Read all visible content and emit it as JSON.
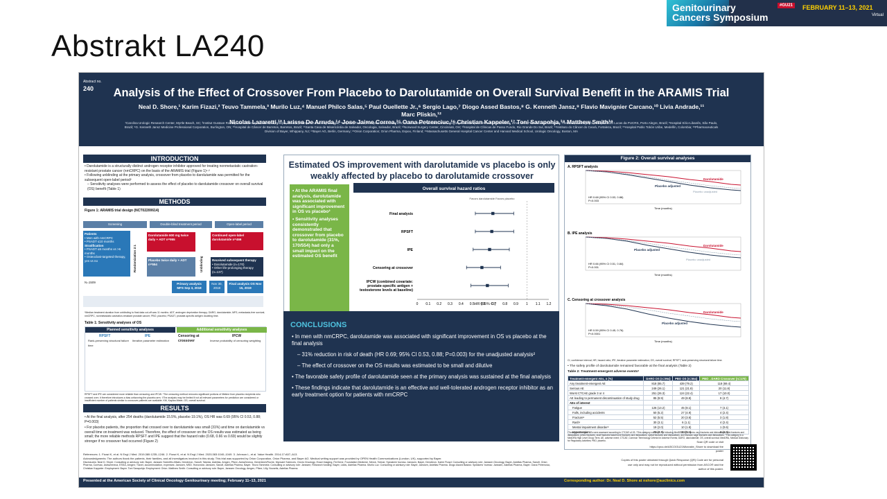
{
  "slide": {
    "title": "Abstrakt LA240"
  },
  "banner": {
    "conference": "Genitourinary Cancers Symposium",
    "tag": "#GU21",
    "dates": "FEBRUARY 11–13, 2021",
    "mode": "Virtual"
  },
  "poster": {
    "abstract_label": "Abstract no.",
    "abstract_number": "240",
    "title": "Analysis of the Effect of Crossover From Placebo to Darolutamide on Overall Survival Benefit in the ARAMIS Trial",
    "authors_line1": "Neal D. Shore,¹ Karim Fizazi,² Teuvo Tammela,³ Murilo Luz,⁴ Manuel Philco Salas,⁵ Paul Ouellette Jr.,⁶ Sergio Lago,⁷ Diogo Assed Bastos,⁸ G. Kenneth Jansz,⁹ Flavio Mavignier Carcano,¹⁰ Livia Andrade,¹¹ Marc Pliskin,¹²",
    "authors_line2": "Nicolas Lazaretti,¹³ Larissa De Arruda,¹⁴ Jose Jaime Correa,¹⁵ Oana Petrenciuc,¹⁶ Christian Kappeler,¹⁷ Toni Sarapohja,¹⁸ Matthew Smith¹⁹",
    "affiliations": "¹Carolina Urologic Research Center, Myrtle Beach, SC; ²Institut Gustave Roussy and University of Paris Sud, Villejuif, France; ³Tampere University Hospital, Tampere, Finland; ⁴Hospital Erasto Gaertner, Curitiba, Brazil; ⁵Instituto de Oncología y Radioterapia Clínica Ricardo Palma, Lima, Peru; ⁶Recherches Cliniques TheraDev, Granby, QC; ⁷Hospital São Lucas da PUCRS, Porto Alegre, Brazil; ⁸Hospital Sírio-Libanês, São Paulo, Brazil; ⁹G. Kenneth Jansz Medicine Professional Corporation, Burlington, ON; ¹⁰Hospital de Câncer de Barretos, Barretos, Brazil; ¹¹Santa Casa de Misericórdia de Salvador, Oncologia, Salvador, Brazil; ¹²Norwood Surgery Center, Cincinnati, OH; ¹³Hospital de Clínicas de Passo Fundo, Rio Grande Do Sul, Brazil; ¹⁴Instituto do Câncer do Ceará, Fortaleza, Brazil; ¹⁵Hospital Pablo Tobón Uribe, Medellín, Colombia; ¹⁶Pharmaceuticals Division of Bayer, Whippany, NJ; ¹⁷Bayer AG, Berlin, Germany; ¹⁸Orion Corporation; Orion Pharma, Espoo, Finland; ¹⁹Massachusetts General Hospital Cancer Center and Harvard Medical School, Urologic Oncology, Boston, MA",
    "introduction": {
      "heading": "INTRODUCTION",
      "bullets": [
        "• Darolutamide is a structurally distinct androgen receptor inhibitor approved for treating nonmetastatic castration-resistant prostate cancer (nmCRPC) on the basis of the ARAMIS trial (Figure 1)¹·²",
        "• Following unblinding at the primary analysis, crossover from placebo to darolutamide was permitted for the subsequent open-label period²",
        "– Sensitivity analyses were performed to assess the effect of placebo to darolutamide crossover on overall survival (OS) benefit (Table 1)"
      ]
    },
    "methods": {
      "heading": "METHODS",
      "figure_label": "Figure 1: ARAMIS trial design (NCT02200614)",
      "screening": "Screening",
      "double_blind": "Double-blind treatment period",
      "open_label": "Open-label period",
      "patients_title": "Patients",
      "patients_lines": [
        "• Men with nmCRPC",
        "• PSADT ≤10 months",
        "Stratification",
        "• PSADT ≤6 months vs >6 months",
        "• Osteoclast-targeted therapy, yes vs no"
      ],
      "n_total": "N=1509",
      "randomization": "Randomization 2:1",
      "daro_arm": "Darolutamide 600 mg twice daily + ADT n=955",
      "placebo_arm": "Placebo twice daily + ADT n=554",
      "unblinding": "Unblinding",
      "continued": "Continued open-label darolutamide n=466",
      "received": "Received subsequent therapy",
      "received_lines": [
        "• Darolutamide (n=170)",
        "• Other life-prolonging therapy (n=137)"
      ],
      "primary": "Primary analysis MFS Sep 3, 2018",
      "nov": "Nov 30, 2018",
      "final": "Final analysis OS Nov 15, 2019",
      "footnote": "*Median treatment duration from unblinding to final data cut-off was 11 months. ADT, androgen deprivation therapy; DARO, darolutamide; MFS, metastasis-free survival; nmCRPC, nonmetastatic castration-resistant prostate cancer; PBO, placebo; PSADT, prostate-specific antigen doubling time.",
      "table1_label": "Table 1: Sensitivity analyses of OS",
      "table1_planned": "Planned sensitivity analyses",
      "table1_additional": "Additional sensitivity analyses",
      "table1_cols": [
        "RPSFT",
        "IPE",
        "Censoring at crossover",
        "IPCW"
      ],
      "table1_row1": [
        "Rank-preserving structural failure time",
        "Iterative parameter estimation",
        "",
        "Inverse probability of censoring weighting"
      ],
      "table1_note": "RPSFT and IPE are considered more reliable than censoring and IPCW. *The censoring method removes significant portions of lifetime from placebo recipients who crossed over; it therefore introduces a bias unfavoring the placebo arm. †The analysis may be limited if not all relevant parameters for prediction are considered or insufficient number of patients similar to crossover patients are available. KM, Kaplan-Meier; OS, overall survival."
    },
    "results": {
      "heading": "RESULTS",
      "bullets": [
        "• At the final analysis, after 254 deaths (darolutamide 15.5%, placebo 19.1%), OS HR was 0.69 (95% CI 0.53, 0.88; P=0.003)",
        "• For placebo patients, the proportion that crossed over to darolutamide was small (31%) and time on darolutamide vs overall time on treatment was reduced. Therefore, the effect of crossover on the OS results was estimated as being small; the more reliable methods RPSFT and IPE suggest that the hazard ratio (0.68, 0.66 vs 0.69) would be slightly stronger if no crossover had occurred (Figure 2)"
      ]
    },
    "key_message": "Estimated OS improvement with darolutamide vs placebo is only weakly affected by placebo to darolutamide crossover",
    "green_box": [
      "• At the ARAMIS final analysis, darolutamide was associated with significant improvement in OS vs placebo²",
      "• Sensitivity analyses consistently demonstrated that crossover from placebo to darolutamide (31%, 170/554) had only a small impact on the estimated OS benefit"
    ],
    "forest": {
      "title": "Overall survival hazard ratios",
      "legend": "Favors darolutamide  Favors placebo",
      "xlabel": "HR (95% CI)",
      "footnote": "CI, confidence interval; HR, hazard ratio; IPE, iterative parameter estimation; OS, overall survival; RPSFT, rank-preserving structural failure time."
    },
    "conclusions": {
      "heading": "CONCLUSIONS",
      "p1": "• In men with nmCRPC, darolutamide was associated with significant improvement in OS vs placebo at the final analysis",
      "p2": "– 31% reduction in risk of death (HR 0.69; 95% CI 0.53, 0.88; P=0.003) for the unadjusted analysis²",
      "p3": "– The effect of crossover on the OS results was estimated to be small and dilutive",
      "p4": "• The favorable safety profile of darolutamide seen at the primary analysis was sustained at the final analysis",
      "p5": "• These findings indicate that darolutamide is an effective and well-tolerated androgen receptor inhibitor as an early treatment option for patients with nmCRPC"
    },
    "figure2": {
      "title": "Figure 2: Overall survival analyses",
      "panel_a": "A. RPSFT analysis",
      "panel_b": "B. IPE analysis",
      "panel_c": "C. Censoring at crossover analysis",
      "daro_label": "Darolutamide",
      "pbo_adj": "Placebo adjusted",
      "pbo_unadj": "Placebo unadjusted",
      "hr_a": "HR 0.68 (95% CI 0.53, 0.88)",
      "p_a": "P=0.003",
      "hr_b": "HR 0.66 (95% CI 0.51, 0.84)",
      "p_b": "P<0.001",
      "hr_c": "HR 0.59 (95% CI 0.45, 0.76)",
      "p_c": "P<0.0001",
      "ylabel": "Survival probability",
      "xlabel": "Time (months)",
      "ticks_y": [
        "1.00",
        "0.90",
        "0.80",
        "0.70",
        "0.60",
        "0.50",
        "0.40",
        "0.30",
        "0.20",
        "0.10",
        "0.00"
      ],
      "ticks_x": [
        "0",
        "3",
        "6",
        "9",
        "12",
        "15",
        "18",
        "21",
        "24",
        "27",
        "30",
        "33",
        "36",
        "39",
        "42",
        "45",
        "48",
        "51",
        "54",
        "57",
        "60"
      ],
      "footnote": "CI, confidence interval; HR, hazard ratio; IPE, iterative parameter estimation; OS, overall survival; RPSFT, rank-preserving structural failure time.",
      "safety_bullet": "• The safety profile of darolutamide remained favorable at the final analysis (Table 2)",
      "table2_label": "Table 2: Treatment-emergent adverse eventsᵃ",
      "table2_header": [
        "Treatment-emergent AEs, n (%)",
        "DARO OS (n=954)",
        "PBO OS (n=554)",
        "PBO→DARO Crossover (n=170)"
      ],
      "table2_rows": [
        [
          "Any treatment-emergent AE",
          "818 (85.7)",
          "439 (79.2)",
          "118 (69.4)"
        ],
        [
          "Serious AE",
          "249 (26.1)",
          "121 (21.8)",
          "20 (11.8)"
        ],
        [
          "Worst CTCAE grade 3 or 4",
          "251 (26.3)",
          "124 (22.4)",
          "17 (10.0)"
        ],
        [
          "AE leading to permanent discontinuation of study drug",
          "85 (8.9)",
          "49 (8.8)",
          "8 (4.7)"
        ],
        [
          "AEs of interest",
          "",
          "",
          ""
        ],
        [
          "Fatigue",
          "126 (13.2)",
          "45 (8.1)",
          "7 (4.1)"
        ],
        [
          "Falls, including accidents",
          "50 (5.2)",
          "27 (4.9)",
          "4 (2.4)"
        ],
        [
          "Fractureᵇ",
          "52 (5.5)",
          "20 (3.6)",
          "3 (1.8)"
        ],
        [
          "Rashᶜ",
          "30 (3.1)",
          "6 (1.1)",
          "4 (2.4)"
        ],
        [
          "Mental impairment disorderᵈ",
          "19 (2.0)",
          "10 (1.8)",
          "1 (0.6)"
        ],
        [
          "Hypertension",
          "73 (7.7)",
          "30 (5.4)",
          "6 (3.5)"
        ]
      ],
      "table2_note": "ᵃTreatment-emergent AEs were assessed according to CTCAE v4.03. ᵇThis category combines the following MedDRA v20.0 terms: any fractures and dislocations, limb fractures and dislocations, pelvic fractures, skull fractures facial bone fractures and dislocations, spinal fractures and dislocations, and thoracic cage fractures and dislocations. ᶜThis category is a MedDRA High Level Group Term. AE, adverse event; CTCAE, Common Terminology Criteria for Adverse Events; DARO, darolutamide; OS, overall survival; MedDRA, Medical Dictionary for Regulatory Activities; PBO, placebo."
    },
    "references": "References: 1. Fizazi K, et al. N Engl J Med. 2019;380:1235–1246. 2. Fizazi K, et al. N Engl J Med. 2020;383:1040–1049. 3. Johnson L, et al. Value Health. 2014;17:A57–A13.",
    "acknowledgments": "Acknowledgments: The authors thank the patients, their families, and all investigators involved in this study. This trial was supported by Orion Corporation, Orion Pharma, and Bayer AG. Medical writing support was provided by OPEN Health Communications (London, UK), supported by Bayer.",
    "disclosures": "Disclosures: Neal D. Shore: Consulting or advisory role: Bayer, Janssen Scientific Affairs, Dendreon, Sanofi, Takeda, Astellas, Amgen, Pfizer, AstraZeneca, Genentech/Roche, Myovant Sciences, Clovis Oncology, Exact Imaging, FerGene, Foundation Medicine, Merck, Tolmar; Speakers' bureau: Janssen, Bayer, Dendreon. Karim Fizazi: Consulting or advisory role: Janssen Oncology, Bayer, Astellas Pharma, Sanofi, Orion Pharma, Curevac, AstraZeneca, ESSA, Amgen; Travel, accommodation, expenses: Janssen, MSD. Honoraria: Janssen, Sanofi, Astellas Pharma, Bayer. Teuvo Tammela: Consulting or advisory role: Janssen; Research funding: Bayer, Lidds, Astellas Pharma. Murilo Luz: Consulting or advisory role: Bayer, Janssen, Astellas Pharma. Diogo Assed Bastos: Speakers' bureau: Janssen, Astellas Pharma, Bayer. Oana Petrenciuc, Christian Kappeler: Employment: Bayer. Toni Sarapohja: Employment: Orion. Matthew Smith: Consulting or advisory role: Bayer, Janssen Oncology, Amgen, Pfizer, Lilly, Novartis, Astellas Pharma.",
    "qr_text": "Scan QR code or visit https://qrco.de/ASCOGU21Microsite_Shore to download the poster",
    "copies_text": "Copies of this poster obtained through Quick Response (QR) Code are for personal use only and may not be reproduced without permission from ASCO® and the author of this poster.",
    "presented": "Presented at the American Society of Clinical Oncology Genitourinary meeting; February 11–13, 2021",
    "corresponding": "Corresponding author: Dr. Neal D. Shore at nshore@auclinics.com"
  },
  "chart_data": [
    {
      "type": "scatter",
      "title": "Overall survival hazard ratios",
      "xlabel": "HR (95% CI)",
      "categories": [
        "Final analysis",
        "RPSFT",
        "IPE",
        "Censoring at crossover",
        "IPCW (combined covariate: prostate-specific antigen + testosterone levels at baseline)"
      ],
      "values": [
        0.69,
        0.68,
        0.66,
        0.59,
        0.64
      ],
      "ci_low": [
        0.53,
        0.53,
        0.51,
        0.45,
        0.49
      ],
      "ci_high": [
        0.88,
        0.88,
        0.84,
        0.76,
        0.83
      ],
      "xlim": [
        0,
        1.2
      ],
      "xticks": [
        "0",
        "0.1",
        "0.2",
        "0.3",
        "0.4",
        "0.5",
        "0.6",
        "0.7",
        "0.8",
        "0.9",
        "1",
        "1.1",
        "1.2"
      ],
      "reference_line": 1,
      "grid": false,
      "legend": "top"
    }
  ],
  "colors": {
    "navy": "#1f3350",
    "green": "#7ab648",
    "red": "#c8102e",
    "daro": "#c8102e",
    "placebo": "#1f3350"
  }
}
